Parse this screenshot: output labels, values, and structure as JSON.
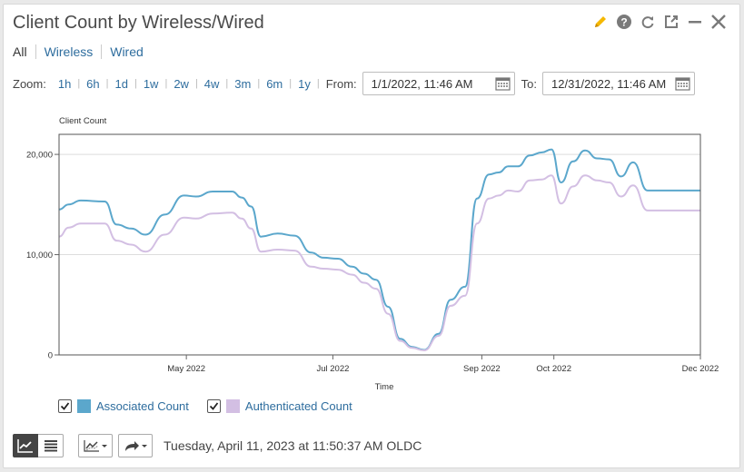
{
  "title": "Client Count by Wireless/Wired",
  "filters": [
    "All",
    "Wireless",
    "Wired"
  ],
  "zoom": {
    "label": "Zoom:",
    "options": [
      "1h",
      "6h",
      "1d",
      "1w",
      "2w",
      "4w",
      "3m",
      "6m",
      "1y"
    ]
  },
  "from": {
    "label": "From:",
    "value": "1/1/2022, 11:46 AM"
  },
  "to": {
    "label": "To:",
    "value": "12/31/2022, 11:46 AM"
  },
  "timestamp": "Tuesday, April 11, 2023 at 11:50:37 AM OLDC",
  "colors": {
    "associated": "#5ba7cc",
    "authenticated": "#d3bfe3",
    "link": "#2e6d9e",
    "edit": "#f5b800"
  },
  "chart_data": {
    "type": "line",
    "ylabel": "Client Count",
    "xlabel": "Time",
    "ylim": [
      0,
      22000
    ],
    "yticks": [
      0,
      10000,
      20000
    ],
    "ytick_labels": [
      "0",
      "10,000",
      "20,000"
    ],
    "xticks": [
      {
        "date": "2022-05-01",
        "label": "May 2022"
      },
      {
        "date": "2022-07-01",
        "label": "Jul 2022"
      },
      {
        "date": "2022-09-01",
        "label": "Sep 2022"
      },
      {
        "date": "2022-10-01",
        "label": "Oct 2022"
      },
      {
        "date": "2022-12-01",
        "label": "Dec 2022"
      }
    ],
    "xlim": [
      "2022-03-09",
      "2022-12-01"
    ],
    "grid": true,
    "x": [
      "2022-03-09",
      "2022-03-13",
      "2022-03-18",
      "2022-03-28",
      "2022-04-02",
      "2022-04-08",
      "2022-04-14",
      "2022-04-22",
      "2022-04-30",
      "2022-05-05",
      "2022-05-12",
      "2022-05-20",
      "2022-05-24",
      "2022-05-28",
      "2022-06-01",
      "2022-06-08",
      "2022-06-15",
      "2022-06-22",
      "2022-06-27",
      "2022-07-03",
      "2022-07-09",
      "2022-07-14",
      "2022-07-19",
      "2022-07-24",
      "2022-07-29",
      "2022-08-03",
      "2022-08-08",
      "2022-08-14",
      "2022-08-19",
      "2022-08-25",
      "2022-08-30",
      "2022-09-04",
      "2022-09-08",
      "2022-09-12",
      "2022-09-16",
      "2022-09-21",
      "2022-09-26",
      "2022-09-30",
      "2022-10-04",
      "2022-10-09",
      "2022-10-14",
      "2022-10-19",
      "2022-10-24",
      "2022-10-29",
      "2022-11-03",
      "2022-11-09",
      "2022-11-14",
      "2022-11-20",
      "2022-11-25",
      "2022-12-01"
    ],
    "series": [
      {
        "name": "Associated Count",
        "color": "#5ba7cc",
        "values": [
          14500,
          15000,
          15400,
          15300,
          13000,
          12600,
          12000,
          14000,
          15900,
          15800,
          16300,
          16300,
          15700,
          14800,
          11800,
          12100,
          11900,
          10200,
          9700,
          9600,
          8800,
          8100,
          7500,
          4800,
          1600,
          800,
          500,
          2100,
          5500,
          6800,
          15600,
          18000,
          18200,
          18800,
          18800,
          19900,
          20200,
          20500,
          17200,
          19300,
          20400,
          19600,
          19500,
          17800,
          19200,
          16400,
          16400,
          16400,
          16400,
          16400
        ]
      },
      {
        "name": "Authenticated Count",
        "color": "#d3bfe3",
        "values": [
          11800,
          12700,
          13100,
          13100,
          11400,
          11000,
          10300,
          12000,
          13700,
          13600,
          14100,
          14200,
          13600,
          12600,
          10300,
          10500,
          10400,
          8800,
          8600,
          8500,
          8000,
          7200,
          6600,
          4100,
          1400,
          700,
          450,
          1900,
          4900,
          5900,
          13100,
          15600,
          15900,
          16400,
          16300,
          17400,
          17500,
          17900,
          15100,
          16800,
          17900,
          17400,
          17200,
          15800,
          16900,
          14400,
          14400,
          14400,
          14400,
          14400
        ]
      }
    ]
  }
}
